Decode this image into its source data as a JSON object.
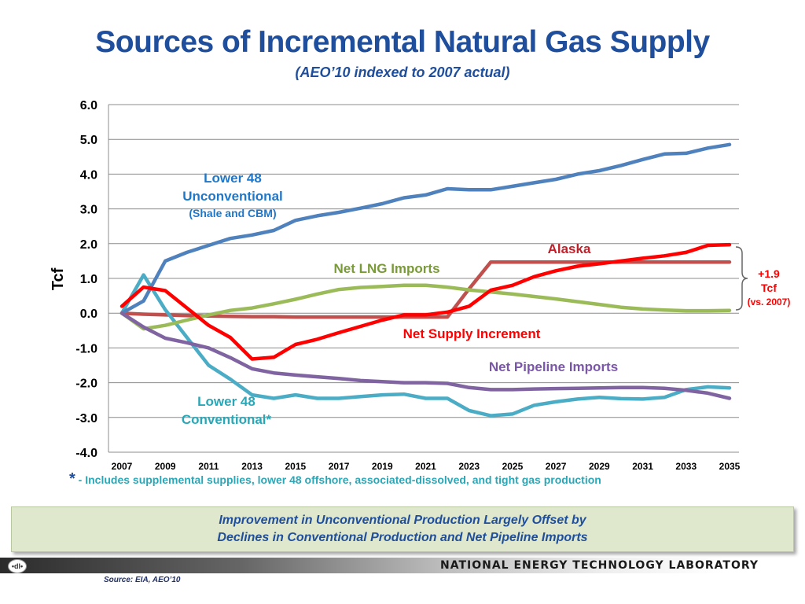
{
  "title": "Sources of Incremental Natural Gas Supply",
  "subtitle": "(AEO’10 indexed to 2007 actual)",
  "chart_data": {
    "type": "line",
    "ylabel": "Tcf",
    "xlabel": "",
    "xlim": [
      2007,
      2035
    ],
    "ylim": [
      -4.0,
      6.0
    ],
    "grid": true,
    "x_tick_labels": [
      "2007",
      "2009",
      "2011",
      "2013",
      "2015",
      "2017",
      "2019",
      "2021",
      "2023",
      "2025",
      "2027",
      "2029",
      "2031",
      "2033",
      "2035"
    ],
    "y_tick_labels": [
      "6.0",
      "5.0",
      "4.0",
      "3.0",
      "2.0",
      "1.0",
      "0.0",
      "-1.0",
      "-2.0",
      "-3.0",
      "-4.0"
    ],
    "years": [
      2007,
      2008,
      2009,
      2010,
      2011,
      2012,
      2013,
      2014,
      2015,
      2016,
      2017,
      2018,
      2019,
      2020,
      2021,
      2022,
      2023,
      2024,
      2025,
      2026,
      2027,
      2028,
      2029,
      2030,
      2031,
      2032,
      2033,
      2034,
      2035
    ],
    "series": [
      {
        "name": "Alaska",
        "color": "#c0504d",
        "values": [
          0.0,
          -0.03,
          -0.05,
          -0.07,
          -0.08,
          -0.09,
          -0.1,
          -0.1,
          -0.11,
          -0.11,
          -0.11,
          -0.11,
          -0.11,
          -0.11,
          -0.11,
          -0.11,
          0.7,
          1.47,
          1.47,
          1.47,
          1.47,
          1.47,
          1.47,
          1.47,
          1.47,
          1.47,
          1.47,
          1.47,
          1.47
        ]
      },
      {
        "name": "Lower 48 Conventional*",
        "color": "#4bacc6",
        "values": [
          0.0,
          1.1,
          0.1,
          -0.7,
          -1.5,
          -1.9,
          -2.35,
          -2.45,
          -2.35,
          -2.45,
          -2.45,
          -2.4,
          -2.35,
          -2.33,
          -2.45,
          -2.45,
          -2.8,
          -2.95,
          -2.9,
          -2.65,
          -2.55,
          -2.47,
          -2.42,
          -2.46,
          -2.47,
          -2.42,
          -2.2,
          -2.12,
          -2.15
        ]
      },
      {
        "name": "Lower 48 Unconventional",
        "color": "#4f81bd",
        "values": [
          0.0,
          0.35,
          1.5,
          1.75,
          1.95,
          2.15,
          2.25,
          2.38,
          2.67,
          2.8,
          2.9,
          3.02,
          3.15,
          3.32,
          3.4,
          3.58,
          3.55,
          3.55,
          3.65,
          3.75,
          3.85,
          4.0,
          4.1,
          4.25,
          4.42,
          4.58,
          4.6,
          4.75,
          4.85
        ]
      },
      {
        "name": "Net LNG Imports",
        "color": "#9bbb59",
        "values": [
          0.0,
          -0.45,
          -0.35,
          -0.2,
          -0.05,
          0.08,
          0.15,
          0.27,
          0.4,
          0.55,
          0.68,
          0.74,
          0.77,
          0.8,
          0.8,
          0.75,
          0.67,
          0.61,
          0.55,
          0.48,
          0.41,
          0.33,
          0.25,
          0.17,
          0.12,
          0.09,
          0.07,
          0.07,
          0.08
        ]
      },
      {
        "name": "Net Pipeline Imports",
        "color": "#8064a2",
        "values": [
          0.0,
          -0.4,
          -0.72,
          -0.85,
          -1.0,
          -1.28,
          -1.6,
          -1.72,
          -1.78,
          -1.83,
          -1.88,
          -1.94,
          -1.97,
          -2.0,
          -2.0,
          -2.02,
          -2.14,
          -2.2,
          -2.2,
          -2.18,
          -2.17,
          -2.16,
          -2.15,
          -2.14,
          -2.14,
          -2.16,
          -2.22,
          -2.3,
          -2.45
        ]
      },
      {
        "name": "Net Supply Increment",
        "color": "#ff0000",
        "values": [
          0.2,
          0.75,
          0.65,
          0.15,
          -0.35,
          -0.7,
          -1.32,
          -1.27,
          -0.9,
          -0.75,
          -0.56,
          -0.38,
          -0.2,
          -0.05,
          -0.05,
          0.03,
          0.2,
          0.66,
          0.8,
          1.05,
          1.22,
          1.35,
          1.42,
          1.5,
          1.58,
          1.65,
          1.75,
          1.95,
          1.97
        ]
      }
    ],
    "annotations": {
      "unconv_l1": "Lower 48",
      "unconv_l2": "Unconventional",
      "unconv_l3": "(Shale and CBM)",
      "conv_l1": "Lower 48",
      "conv_l2": "Conventional*",
      "lng": "Net LNG Imports",
      "alaska": "Alaska",
      "net_supply": "Net Supply Increment",
      "pipeline": "Net Pipeline Imports",
      "brace_l1": "+1.9",
      "brace_l2": "Tcf",
      "brace_l3": "(vs. 2007)"
    }
  },
  "footnote": {
    "star": "*",
    "text": " - Includes supplemental supplies, lower 48 offshore, associated-dissolved, and tight gas production"
  },
  "callout": {
    "line1": "Improvement in Unconventional Production Largely Offset by",
    "line2": "Declines in Conventional Production and Net Pipeline Imports"
  },
  "footer": {
    "logo_text": "•dl•",
    "lab_name": "NATIONAL ENERGY TECHNOLOGY LABORATORY",
    "source": "Source: EIA, AEO’10"
  }
}
